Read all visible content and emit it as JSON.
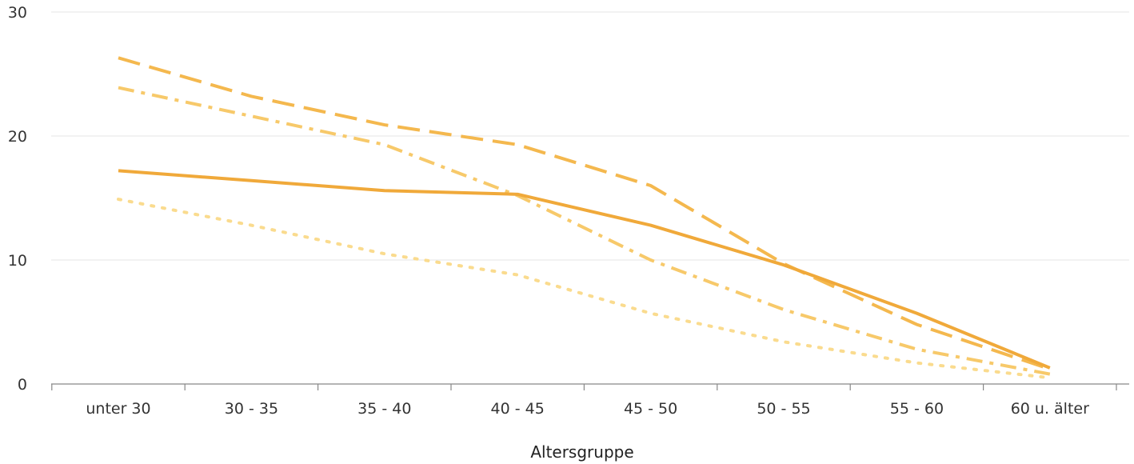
{
  "chart_data": {
    "type": "line",
    "title": "",
    "xlabel": "Altersgruppe",
    "ylabel": "",
    "categories": [
      "unter 30",
      "30 - 35",
      "35 - 40",
      "40 - 45",
      "45 - 50",
      "50 - 55",
      "55 - 60",
      "60 u. älter"
    ],
    "ylim": [
      0,
      30
    ],
    "yticks": [
      0,
      10,
      20,
      30
    ],
    "grid": true,
    "series": [
      {
        "values": [
          17.2,
          16.4,
          15.6,
          15.3,
          12.8,
          9.6,
          5.7,
          1.3
        ],
        "color": "#f0a93a",
        "dash": "solid"
      },
      {
        "values": [
          26.3,
          23.2,
          20.9,
          19.3,
          16.0,
          9.7,
          4.8,
          1.2
        ],
        "color": "#f4b84e",
        "dash": "dashed"
      },
      {
        "values": [
          23.9,
          21.6,
          19.3,
          15.2,
          10.0,
          6.0,
          2.8,
          0.8
        ],
        "color": "#f7c96a",
        "dash": "dashdot"
      },
      {
        "values": [
          14.9,
          12.8,
          10.5,
          8.8,
          5.7,
          3.4,
          1.7,
          0.5
        ],
        "color": "#fadb8e",
        "dash": "dotted"
      }
    ]
  }
}
